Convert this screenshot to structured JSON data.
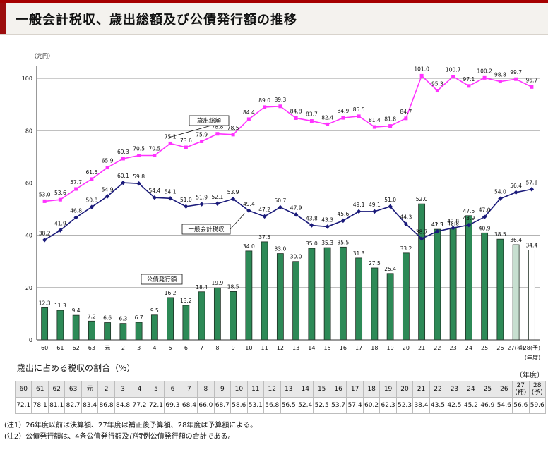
{
  "page": {
    "title": "一般会計税収、歳出総額及び公債発行額の推移"
  },
  "chart_data": {
    "type": "bar-line",
    "yunit": "（兆円）",
    "ylim": [
      0,
      110
    ],
    "yticks": [
      0,
      20,
      40,
      60,
      80,
      100
    ],
    "grid": true,
    "categories": [
      "60",
      "61",
      "62",
      "63",
      "元",
      "2",
      "3",
      "4",
      "5",
      "6",
      "7",
      "8",
      "9",
      "10",
      "11",
      "12",
      "13",
      "14",
      "15",
      "16",
      "17",
      "18",
      "19",
      "20",
      "21",
      "22",
      "23",
      "24",
      "25",
      "26",
      "27(補)",
      "28(予)"
    ],
    "xunit": "（年度）",
    "series": [
      {
        "name": "歳出総額",
        "type": "line",
        "color": "#ff33ff",
        "values": [
          53.0,
          53.6,
          57.7,
          61.5,
          65.9,
          69.3,
          70.5,
          70.5,
          75.1,
          73.6,
          75.9,
          78.8,
          78.5,
          84.4,
          89.0,
          89.3,
          84.8,
          83.7,
          82.4,
          84.9,
          85.5,
          81.4,
          81.8,
          84.7,
          101.0,
          95.3,
          100.7,
          97.1,
          100.2,
          98.8,
          99.7,
          96.7
        ]
      },
      {
        "name": "一般会計税収",
        "type": "line",
        "color": "#1a1a7a",
        "values": [
          38.2,
          41.9,
          46.8,
          50.8,
          54.9,
          60.1,
          59.8,
          54.4,
          54.1,
          51.0,
          51.9,
          52.1,
          53.9,
          49.4,
          47.2,
          50.7,
          47.9,
          43.8,
          43.3,
          45.6,
          49.1,
          49.1,
          51.0,
          44.3,
          38.7,
          41.5,
          42.8,
          43.9,
          47.0,
          54.0,
          56.4,
          57.6
        ]
      },
      {
        "name": "公債発行額",
        "type": "bar",
        "color": "#2d8a57",
        "values": [
          12.3,
          11.3,
          9.4,
          7.2,
          6.6,
          6.3,
          6.7,
          9.5,
          16.2,
          13.2,
          18.4,
          19.9,
          18.5,
          34.0,
          37.5,
          33.0,
          30.0,
          35.0,
          35.3,
          35.5,
          31.3,
          27.5,
          25.4,
          33.2,
          52.0,
          42.3,
          42.8,
          47.5,
          40.9,
          38.5,
          36.4,
          34.4
        ]
      }
    ],
    "special_bars": {
      "27(補)": "#c7dfd0",
      "28(予)": "#ffffff"
    }
  },
  "ratio_table": {
    "title": "歳出に占める税収の割合（%）",
    "unit": "（年度）",
    "headers": [
      "60",
      "61",
      "62",
      "63",
      "元",
      "2",
      "3",
      "4",
      "5",
      "6",
      "7",
      "8",
      "9",
      "10",
      "11",
      "12",
      "13",
      "14",
      "15",
      "16",
      "17",
      "18",
      "19",
      "20",
      "21",
      "22",
      "23",
      "24",
      "25",
      "26",
      "27 (補)",
      "28 (予)"
    ],
    "values": [
      "72.1",
      "78.1",
      "81.1",
      "82.7",
      "83.4",
      "86.8",
      "84.8",
      "77.2",
      "72.1",
      "69.3",
      "68.4",
      "66.0",
      "68.7",
      "58.6",
      "53.1",
      "56.8",
      "56.5",
      "52.4",
      "52.5",
      "53.7",
      "57.4",
      "60.2",
      "62.3",
      "52.3",
      "38.4",
      "43.5",
      "42.5",
      "45.2",
      "46.9",
      "54.6",
      "56.6",
      "59.6"
    ]
  },
  "notes": [
    "(注1）26年度以前は決算額、27年度は補正後予算額、28年度は予算額による。",
    "(注2）公債発行額は、4条公債発行額及び特例公債発行額の合計である。"
  ]
}
